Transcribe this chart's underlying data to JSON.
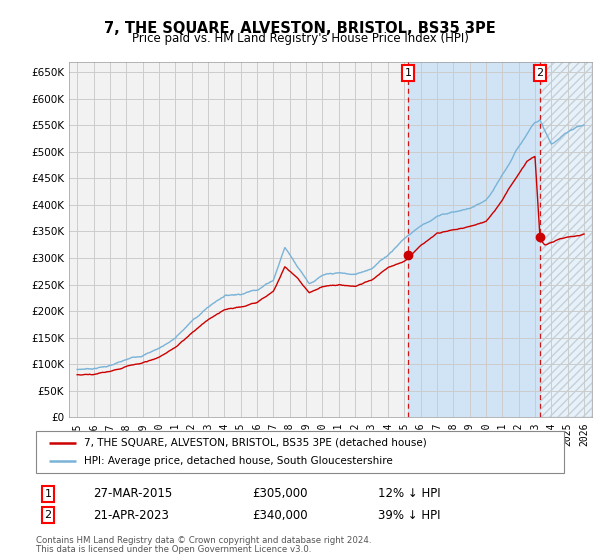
{
  "title": "7, THE SQUARE, ALVESTON, BRISTOL, BS35 3PE",
  "subtitle": "Price paid vs. HM Land Registry's House Price Index (HPI)",
  "legend_line1": "7, THE SQUARE, ALVESTON, BRISTOL, BS35 3PE (detached house)",
  "legend_line2": "HPI: Average price, detached house, South Gloucestershire",
  "transaction1_date": "27-MAR-2015",
  "transaction1_price": 305000,
  "transaction1_hpi_text": "12% ↓ HPI",
  "transaction2_date": "21-APR-2023",
  "transaction2_price": 340000,
  "transaction2_hpi_text": "39% ↓ HPI",
  "transaction1_year": 2015.24,
  "transaction2_year": 2023.31,
  "footer": "Contains HM Land Registry data © Crown copyright and database right 2024.\nThis data is licensed under the Open Government Licence v3.0.",
  "ylim_min": 0,
  "ylim_max": 670000,
  "xlim_start": 1994.5,
  "xlim_end": 2026.5,
  "hpi_color": "#7ab3d8",
  "property_color": "#cc0000",
  "fill_color": "#d0e4f5",
  "plot_bg": "#f5f5f5",
  "grid_color": "#cccccc",
  "hatch_color": "#bbbbbb"
}
